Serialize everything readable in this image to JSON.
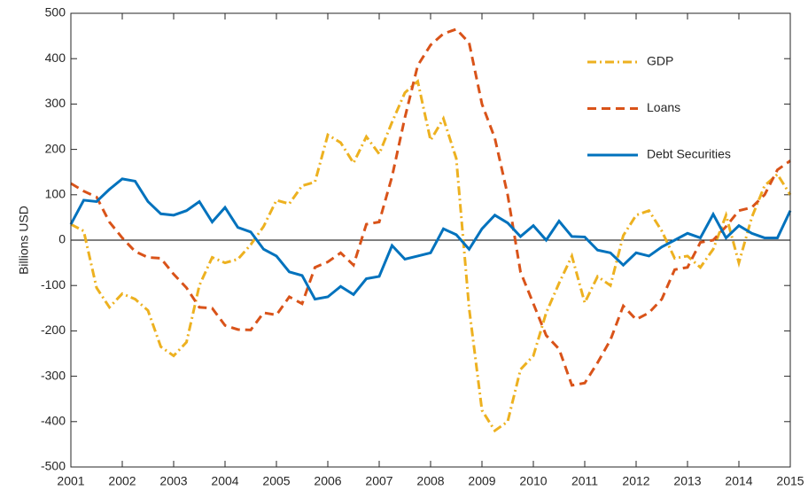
{
  "chart_data": {
    "type": "line",
    "ylabel": "Billions USD",
    "x": [
      2001,
      2001.25,
      2001.5,
      2001.75,
      2002,
      2002.25,
      2002.5,
      2002.75,
      2003,
      2003.25,
      2003.5,
      2003.75,
      2004,
      2004.25,
      2004.5,
      2004.75,
      2005,
      2005.25,
      2005.5,
      2005.75,
      2006,
      2006.25,
      2006.5,
      2006.75,
      2007,
      2007.25,
      2007.5,
      2007.75,
      2008,
      2008.25,
      2008.5,
      2008.75,
      2009,
      2009.25,
      2009.5,
      2009.75,
      2010,
      2010.25,
      2010.5,
      2010.75,
      2011,
      2011.25,
      2011.5,
      2011.75,
      2012,
      2012.25,
      2012.5,
      2012.75,
      2013,
      2013.25,
      2013.5,
      2013.75,
      2014,
      2014.25,
      2014.5,
      2014.75,
      2015
    ],
    "series": [
      {
        "name": "GDP",
        "color": "#edb120",
        "style": "dashdot",
        "values": [
          35,
          20,
          -105,
          -148,
          -118,
          -130,
          -155,
          -235,
          -255,
          -225,
          -100,
          -38,
          -50,
          -42,
          -10,
          30,
          88,
          80,
          120,
          128,
          232,
          215,
          170,
          228,
          190,
          260,
          325,
          350,
          220,
          268,
          180,
          -150,
          -375,
          -420,
          -400,
          -285,
          -255,
          -160,
          -95,
          -35,
          -138,
          -80,
          -100,
          10,
          55,
          65,
          20,
          -40,
          -35,
          -60,
          -20,
          55,
          -50,
          50,
          120,
          145,
          100
        ]
      },
      {
        "name": "Loans",
        "color": "#d95319",
        "style": "dashed",
        "values": [
          125,
          108,
          95,
          40,
          5,
          -25,
          -38,
          -40,
          -75,
          -105,
          -148,
          -150,
          -188,
          -197,
          -198,
          -160,
          -165,
          -125,
          -140,
          -60,
          -48,
          -28,
          -55,
          35,
          40,
          140,
          270,
          385,
          430,
          455,
          465,
          435,
          300,
          225,
          100,
          -70,
          -140,
          -210,
          -240,
          -320,
          -315,
          -270,
          -220,
          -145,
          -175,
          -160,
          -130,
          -65,
          -60,
          -5,
          0,
          30,
          65,
          72,
          100,
          155,
          175
        ]
      },
      {
        "name": "Debt Securities",
        "color": "#0072bd",
        "style": "solid",
        "values": [
          35,
          88,
          85,
          112,
          135,
          130,
          85,
          58,
          55,
          65,
          85,
          40,
          72,
          28,
          18,
          -20,
          -35,
          -70,
          -78,
          -130,
          -125,
          -102,
          -120,
          -85,
          -80,
          -12,
          -42,
          -35,
          -28,
          25,
          12,
          -20,
          25,
          55,
          38,
          8,
          32,
          0,
          42,
          8,
          7,
          -22,
          -28,
          -55,
          -28,
          -35,
          -15,
          0,
          15,
          5,
          57,
          5,
          32,
          15,
          5,
          5,
          65
        ]
      }
    ],
    "xlim": [
      2001,
      2015
    ],
    "xticks": [
      2001,
      2002,
      2003,
      2004,
      2005,
      2006,
      2007,
      2008,
      2009,
      2010,
      2011,
      2012,
      2013,
      2014,
      2015
    ],
    "ylim": [
      -500,
      500
    ],
    "yticks": [
      -500,
      -400,
      -300,
      -200,
      -100,
      0,
      100,
      200,
      300,
      400,
      500
    ],
    "legend": "upper right"
  }
}
